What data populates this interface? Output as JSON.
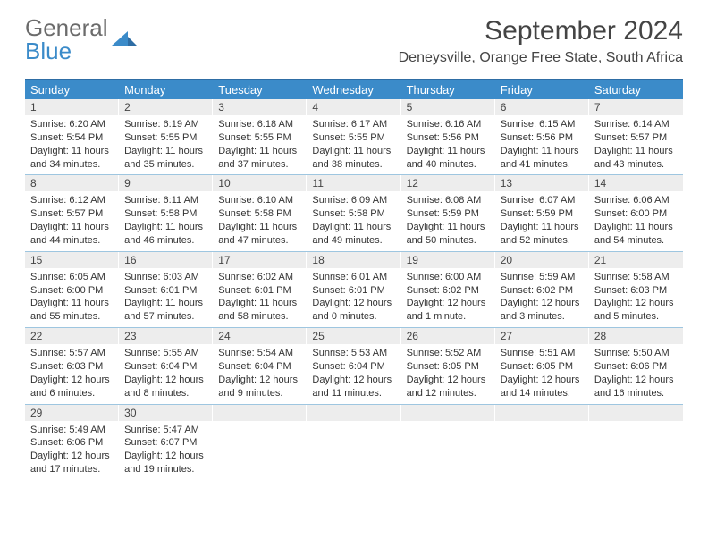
{
  "logo": {
    "text1": "General",
    "text2": "Blue"
  },
  "title": "September 2024",
  "subtitle": "Deneysville, Orange Free State, South Africa",
  "colors": {
    "header_bg": "#3b8bc9",
    "border": "#2e6da4",
    "daynum_bg": "#ededed",
    "text": "#333333",
    "logo_gray": "#6b6b6b",
    "logo_blue": "#3b8bc9"
  },
  "dow": [
    "Sunday",
    "Monday",
    "Tuesday",
    "Wednesday",
    "Thursday",
    "Friday",
    "Saturday"
  ],
  "days": [
    {
      "n": "1",
      "sr": "6:20 AM",
      "ss": "5:54 PM",
      "dl": "11 hours and 34 minutes."
    },
    {
      "n": "2",
      "sr": "6:19 AM",
      "ss": "5:55 PM",
      "dl": "11 hours and 35 minutes."
    },
    {
      "n": "3",
      "sr": "6:18 AM",
      "ss": "5:55 PM",
      "dl": "11 hours and 37 minutes."
    },
    {
      "n": "4",
      "sr": "6:17 AM",
      "ss": "5:55 PM",
      "dl": "11 hours and 38 minutes."
    },
    {
      "n": "5",
      "sr": "6:16 AM",
      "ss": "5:56 PM",
      "dl": "11 hours and 40 minutes."
    },
    {
      "n": "6",
      "sr": "6:15 AM",
      "ss": "5:56 PM",
      "dl": "11 hours and 41 minutes."
    },
    {
      "n": "7",
      "sr": "6:14 AM",
      "ss": "5:57 PM",
      "dl": "11 hours and 43 minutes."
    },
    {
      "n": "8",
      "sr": "6:12 AM",
      "ss": "5:57 PM",
      "dl": "11 hours and 44 minutes."
    },
    {
      "n": "9",
      "sr": "6:11 AM",
      "ss": "5:58 PM",
      "dl": "11 hours and 46 minutes."
    },
    {
      "n": "10",
      "sr": "6:10 AM",
      "ss": "5:58 PM",
      "dl": "11 hours and 47 minutes."
    },
    {
      "n": "11",
      "sr": "6:09 AM",
      "ss": "5:58 PM",
      "dl": "11 hours and 49 minutes."
    },
    {
      "n": "12",
      "sr": "6:08 AM",
      "ss": "5:59 PM",
      "dl": "11 hours and 50 minutes."
    },
    {
      "n": "13",
      "sr": "6:07 AM",
      "ss": "5:59 PM",
      "dl": "11 hours and 52 minutes."
    },
    {
      "n": "14",
      "sr": "6:06 AM",
      "ss": "6:00 PM",
      "dl": "11 hours and 54 minutes."
    },
    {
      "n": "15",
      "sr": "6:05 AM",
      "ss": "6:00 PM",
      "dl": "11 hours and 55 minutes."
    },
    {
      "n": "16",
      "sr": "6:03 AM",
      "ss": "6:01 PM",
      "dl": "11 hours and 57 minutes."
    },
    {
      "n": "17",
      "sr": "6:02 AM",
      "ss": "6:01 PM",
      "dl": "11 hours and 58 minutes."
    },
    {
      "n": "18",
      "sr": "6:01 AM",
      "ss": "6:01 PM",
      "dl": "12 hours and 0 minutes."
    },
    {
      "n": "19",
      "sr": "6:00 AM",
      "ss": "6:02 PM",
      "dl": "12 hours and 1 minute."
    },
    {
      "n": "20",
      "sr": "5:59 AM",
      "ss": "6:02 PM",
      "dl": "12 hours and 3 minutes."
    },
    {
      "n": "21",
      "sr": "5:58 AM",
      "ss": "6:03 PM",
      "dl": "12 hours and 5 minutes."
    },
    {
      "n": "22",
      "sr": "5:57 AM",
      "ss": "6:03 PM",
      "dl": "12 hours and 6 minutes."
    },
    {
      "n": "23",
      "sr": "5:55 AM",
      "ss": "6:04 PM",
      "dl": "12 hours and 8 minutes."
    },
    {
      "n": "24",
      "sr": "5:54 AM",
      "ss": "6:04 PM",
      "dl": "12 hours and 9 minutes."
    },
    {
      "n": "25",
      "sr": "5:53 AM",
      "ss": "6:04 PM",
      "dl": "12 hours and 11 minutes."
    },
    {
      "n": "26",
      "sr": "5:52 AM",
      "ss": "6:05 PM",
      "dl": "12 hours and 12 minutes."
    },
    {
      "n": "27",
      "sr": "5:51 AM",
      "ss": "6:05 PM",
      "dl": "12 hours and 14 minutes."
    },
    {
      "n": "28",
      "sr": "5:50 AM",
      "ss": "6:06 PM",
      "dl": "12 hours and 16 minutes."
    },
    {
      "n": "29",
      "sr": "5:49 AM",
      "ss": "6:06 PM",
      "dl": "12 hours and 17 minutes."
    },
    {
      "n": "30",
      "sr": "5:47 AM",
      "ss": "6:07 PM",
      "dl": "12 hours and 19 minutes."
    }
  ],
  "labels": {
    "sunrise": "Sunrise: ",
    "sunset": "Sunset: ",
    "daylight": "Daylight: "
  }
}
